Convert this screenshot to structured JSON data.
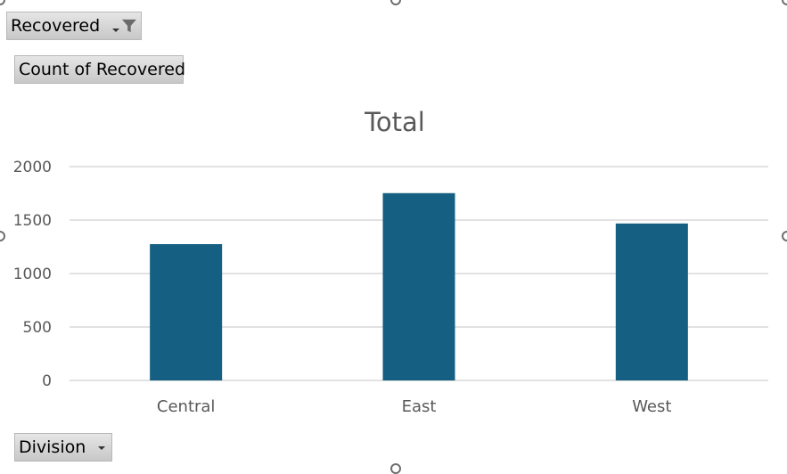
{
  "filter_button": {
    "label": "Recovered"
  },
  "values_button": {
    "label": "Count of Recovered"
  },
  "axis_button": {
    "label": "Division"
  },
  "chart_data": {
    "type": "bar",
    "title": "Total",
    "categories": [
      "Central",
      "East",
      "West"
    ],
    "values": [
      1275,
      1752,
      1468
    ],
    "ylim": [
      0,
      2000
    ],
    "yticks": [
      0,
      500,
      1000,
      1500,
      2000
    ],
    "grid": true,
    "bar_color": "#155f82",
    "xlabel": "",
    "ylabel": ""
  }
}
